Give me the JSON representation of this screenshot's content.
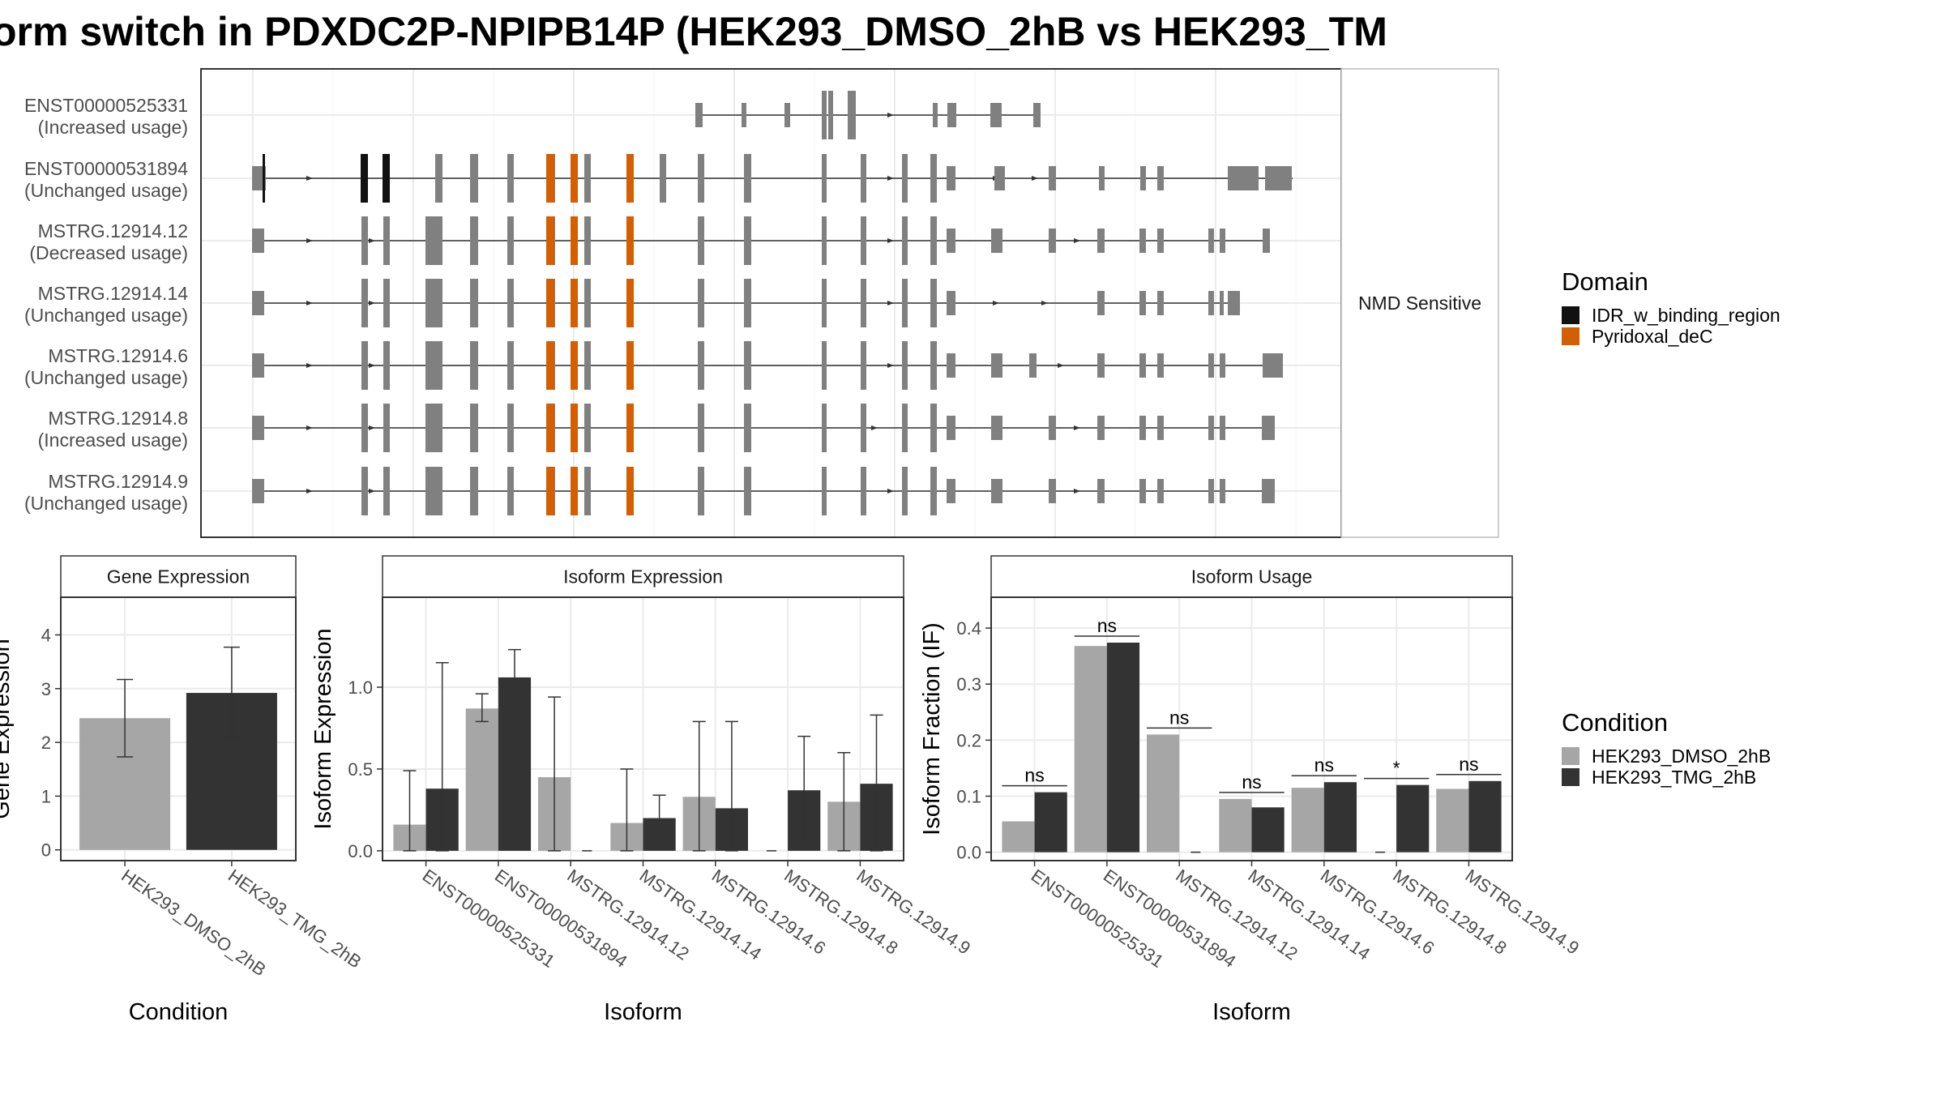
{
  "title": "orm switch in PDXDC2P-NPIPB14P (HEK293_DMSO_2hB vs HEK293_TM",
  "colors": {
    "exon": "#808080",
    "idr": "#111111",
    "pyridoxal": "#D55E00",
    "dmso": "#A6A6A6",
    "tmg": "#333333",
    "panel_border": "#333333",
    "grid": "#EBEBEB",
    "strip_bg": "#FFFFFF"
  },
  "chart_data": [
    {
      "type": "gene-structure",
      "facet_label": "NMD Sensitive",
      "legend": {
        "title": "Domain",
        "items": [
          {
            "name": "IDR_w_binding_region",
            "color": "#111111"
          },
          {
            "name": "Pyridoxal_deC",
            "color": "#D55E00"
          }
        ]
      },
      "isoforms": [
        {
          "id": "ENST00000525331",
          "status": "(Increased usage)"
        },
        {
          "id": "ENST00000531894",
          "status": "(Unchanged usage)"
        },
        {
          "id": "MSTRG.12914.12",
          "status": "(Decreased usage)"
        },
        {
          "id": "MSTRG.12914.14",
          "status": "(Unchanged usage)"
        },
        {
          "id": "MSTRG.12914.6",
          "status": "(Unchanged usage)"
        },
        {
          "id": "MSTRG.12914.8",
          "status": "(Increased usage)"
        },
        {
          "id": "MSTRG.12914.9",
          "status": "(Unchanged usage)"
        }
      ]
    },
    {
      "type": "bar",
      "strip": "Gene Expression",
      "xlabel": "Condition",
      "ylabel": "Gene Expression",
      "ylim": [
        -0.2,
        4.7
      ],
      "yticks": [
        0,
        1,
        2,
        3,
        4
      ],
      "categories": [
        "HEK293_DMSO_2hB",
        "HEK293_TMG_2hB"
      ],
      "values": [
        2.45,
        2.92
      ],
      "error": [
        [
          1.73,
          3.17
        ],
        [
          2.07,
          3.77
        ]
      ]
    },
    {
      "type": "bar",
      "strip": "Isoform Expression",
      "xlabel": "Isoform",
      "ylabel": "Isoform Expression",
      "ylim": [
        -0.06,
        1.55
      ],
      "yticks": [
        0.0,
        0.5,
        1.0
      ],
      "categories": [
        "ENST00000525331",
        "ENST00000531894",
        "MSTRG.12914.12",
        "MSTRG.12914.14",
        "MSTRG.12914.6",
        "MSTRG.12914.8",
        "MSTRG.12914.9"
      ],
      "series": [
        {
          "name": "HEK293_DMSO_2hB",
          "values": [
            0.16,
            0.87,
            0.45,
            0.17,
            0.33,
            0.0,
            0.3
          ],
          "error": [
            [
              0.0,
              0.49
            ],
            [
              0.79,
              0.96
            ],
            [
              0.0,
              0.94
            ],
            [
              0.0,
              0.5
            ],
            [
              0.0,
              0.79
            ],
            [
              0.0,
              0.0
            ],
            [
              0.0,
              0.6
            ]
          ]
        },
        {
          "name": "HEK293_TMG_2hB",
          "values": [
            0.38,
            1.06,
            0.0,
            0.2,
            0.26,
            0.37,
            0.41
          ],
          "error": [
            [
              0.0,
              1.15
            ],
            [
              0.9,
              1.23
            ],
            [
              0.0,
              0.0
            ],
            [
              0.05,
              0.34
            ],
            [
              0.0,
              0.79
            ],
            [
              0.05,
              0.7
            ],
            [
              0.0,
              0.83
            ]
          ]
        }
      ]
    },
    {
      "type": "bar",
      "strip": "Isoform Usage",
      "xlabel": "Isoform",
      "ylabel": "Isoform Fraction (IF)",
      "ylim": [
        -0.015,
        0.455
      ],
      "yticks": [
        0.0,
        0.1,
        0.2,
        0.3,
        0.4
      ],
      "categories": [
        "ENST00000525331",
        "ENST00000531894",
        "MSTRG.12914.12",
        "MSTRG.12914.14",
        "MSTRG.12914.6",
        "MSTRG.12914.8",
        "MSTRG.12914.9"
      ],
      "series": [
        {
          "name": "HEK293_DMSO_2hB",
          "values": [
            0.055,
            0.368,
            0.21,
            0.095,
            0.115,
            0.0,
            0.113
          ]
        },
        {
          "name": "HEK293_TMG_2hB",
          "values": [
            0.107,
            0.374,
            0.0,
            0.08,
            0.125,
            0.12,
            0.127
          ]
        }
      ],
      "significance": [
        "ns",
        "ns",
        "ns",
        "ns",
        "ns",
        "*",
        "ns"
      ]
    }
  ],
  "condition_legend": {
    "title": "Condition",
    "items": [
      {
        "name": "HEK293_DMSO_2hB",
        "color": "#A6A6A6"
      },
      {
        "name": "HEK293_TMG_2hB",
        "color": "#333333"
      }
    ]
  }
}
